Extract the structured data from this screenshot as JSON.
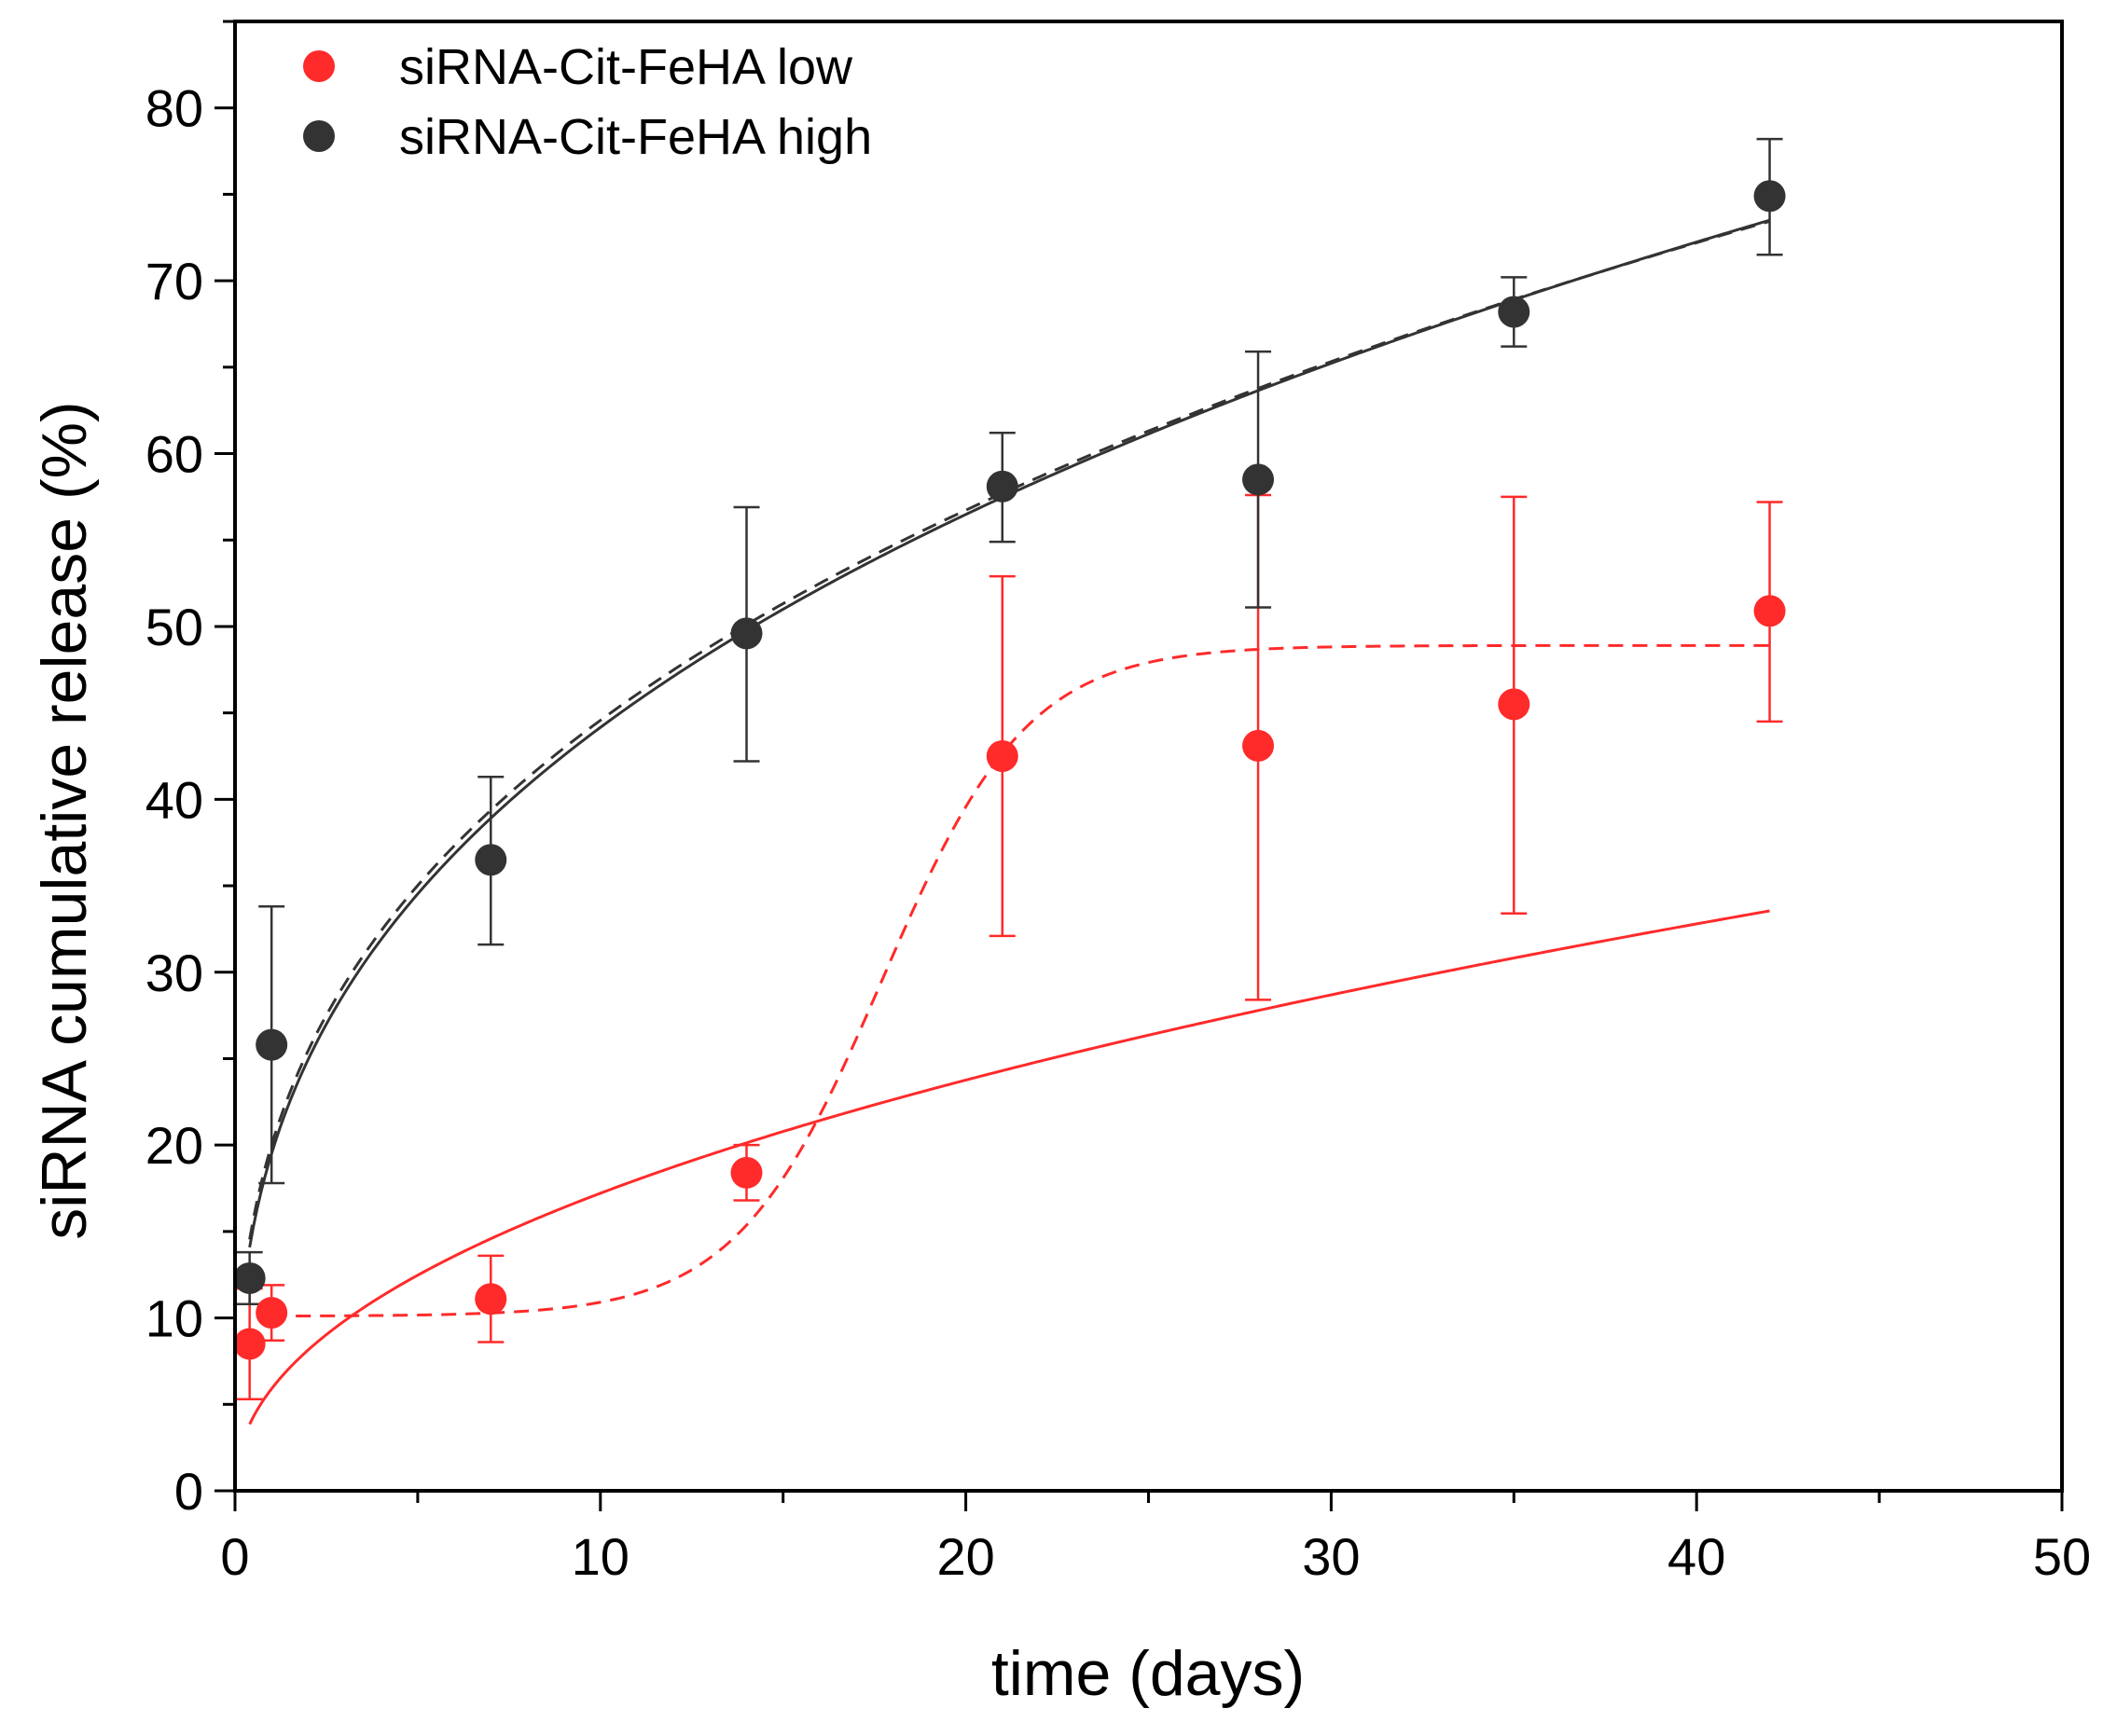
{
  "chart_data": {
    "type": "scatter",
    "xlabel": "time (days)",
    "ylabel": "siRNA cumulative release (%)",
    "xlim": [
      0,
      50
    ],
    "ylim": [
      0,
      85
    ],
    "x_ticks": [
      0,
      10,
      20,
      30,
      40,
      50
    ],
    "y_ticks": [
      0,
      10,
      20,
      30,
      40,
      50,
      60,
      70,
      80
    ],
    "grid": false,
    "legend_position": "top-left",
    "series": [
      {
        "name": "siRNA-Cit-FeHA low",
        "color": "#ff2a2a",
        "x": [
          0.4,
          1,
          7,
          14,
          21,
          28,
          35,
          42
        ],
        "y": [
          8.5,
          10.3,
          11.1,
          18.4,
          42.5,
          43.1,
          45.5,
          50.9
        ],
        "err_low": [
          3.2,
          1.6,
          2.5,
          1.6,
          10.4,
          14.7,
          12.1,
          6.4
        ],
        "err_high": [
          3.2,
          1.6,
          2.5,
          1.6,
          10.4,
          14.5,
          12.0,
          6.3
        ],
        "fits": [
          {
            "style": "solid",
            "model": "power",
            "a": 5.9,
            "n": 0.465,
            "x_range": [
              0.4,
              42
            ]
          },
          {
            "style": "dashed",
            "model": "sigmoid",
            "y0": 10.1,
            "y1": 48.9,
            "xc": 17.7,
            "k": 2.0,
            "x_range": [
              1,
              42
            ]
          }
        ]
      },
      {
        "name": "siRNA-Cit-FeHA high",
        "color": "#333333",
        "x": [
          0.4,
          1,
          7,
          14,
          21,
          28,
          35,
          42
        ],
        "y": [
          12.3,
          25.8,
          36.5,
          49.6,
          58.1,
          58.5,
          68.2,
          74.9
        ],
        "err_low": [
          1.5,
          8.0,
          4.9,
          7.4,
          3.2,
          7.4,
          2.0,
          3.4
        ],
        "err_high": [
          1.5,
          8.0,
          4.8,
          7.3,
          3.1,
          7.4,
          2.0,
          3.3
        ],
        "fits": [
          {
            "style": "solid",
            "model": "power",
            "a": 19.5,
            "n": 0.355,
            "x_range": [
              0.4,
              42
            ]
          },
          {
            "style": "dashed",
            "model": "power",
            "a": 20.0,
            "n": 0.348,
            "x_range": [
              0.4,
              42
            ]
          }
        ]
      }
    ]
  }
}
